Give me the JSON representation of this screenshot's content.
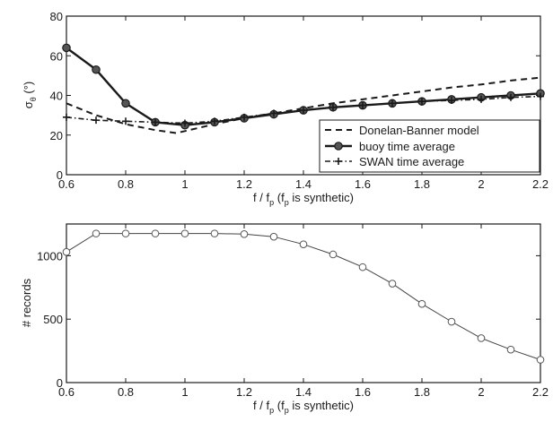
{
  "chart_data": [
    {
      "type": "line",
      "xlabel_main": "f / f",
      "xlabel_sub": "p",
      "xlabel_rest": " (f",
      "xlabel_sub2": "p",
      "xlabel_end": " is synthetic)",
      "ylabel_main": "σ",
      "ylabel_sub": "θ",
      "ylabel_unit": " (°)",
      "xlim": [
        0.6,
        2.2
      ],
      "ylim": [
        0,
        80
      ],
      "xticks": [
        "0.6",
        "0.8",
        "1",
        "1.2",
        "1.4",
        "1.6",
        "1.8",
        "2",
        "2.2"
      ],
      "yticks": [
        "0",
        "20",
        "40",
        "60",
        "80"
      ],
      "legend_position": "bottom-right",
      "series": [
        {
          "name": "Donelan-Banner model",
          "style": "dashed",
          "x": [
            0.6,
            0.7,
            0.8,
            0.9,
            0.97,
            1.0,
            1.1,
            1.2,
            1.3,
            1.4,
            1.5,
            1.6,
            1.7,
            1.8,
            1.9,
            2.0,
            2.1,
            2.2
          ],
          "y": [
            36,
            30,
            25.5,
            22.5,
            21,
            22,
            25.5,
            28.5,
            31,
            33.5,
            36,
            38,
            40,
            42,
            44,
            45.5,
            47.5,
            49
          ]
        },
        {
          "name": "buoy time average",
          "style": "solid-circle",
          "x": [
            0.6,
            0.7,
            0.8,
            0.9,
            1.0,
            1.1,
            1.2,
            1.3,
            1.4,
            1.5,
            1.6,
            1.7,
            1.8,
            1.9,
            2.0,
            2.1,
            2.2
          ],
          "y": [
            64,
            53,
            36,
            26.5,
            25,
            26.5,
            28.5,
            30.5,
            32.5,
            34,
            35,
            36,
            37,
            38,
            39,
            40,
            41
          ]
        },
        {
          "name": "SWAN time average",
          "style": "dashdot-plus",
          "x": [
            0.6,
            0.7,
            0.8,
            0.9,
            1.0,
            1.1,
            1.2,
            1.3,
            1.4,
            1.5,
            1.6,
            1.7,
            1.8,
            1.9,
            2.0,
            2.1,
            2.2
          ],
          "y": [
            29,
            27.5,
            27,
            26.5,
            26,
            27,
            29,
            31,
            32.5,
            34,
            35,
            36,
            37,
            37.5,
            38,
            39,
            39.5
          ]
        }
      ]
    },
    {
      "type": "line",
      "xlabel_main": "f / f",
      "xlabel_sub": "p",
      "xlabel_rest": " (f",
      "xlabel_sub2": "p",
      "xlabel_end": " is synthetic)",
      "ylabel": "# records",
      "xlim": [
        0.6,
        2.2
      ],
      "ylim": [
        0,
        1250
      ],
      "xticks": [
        "0.6",
        "0.8",
        "1",
        "1.2",
        "1.4",
        "1.6",
        "1.8",
        "2",
        "2.2"
      ],
      "yticks": [
        "0",
        "500",
        "1000"
      ],
      "series": [
        {
          "style": "solid-open-circle",
          "x": [
            0.6,
            0.7,
            0.8,
            0.9,
            1.0,
            1.1,
            1.2,
            1.3,
            1.4,
            1.5,
            1.6,
            1.7,
            1.8,
            1.9,
            2.0,
            2.1,
            2.2
          ],
          "y": [
            1030,
            1175,
            1175,
            1175,
            1175,
            1175,
            1170,
            1150,
            1090,
            1010,
            910,
            780,
            620,
            480,
            350,
            260,
            180
          ]
        }
      ]
    }
  ]
}
